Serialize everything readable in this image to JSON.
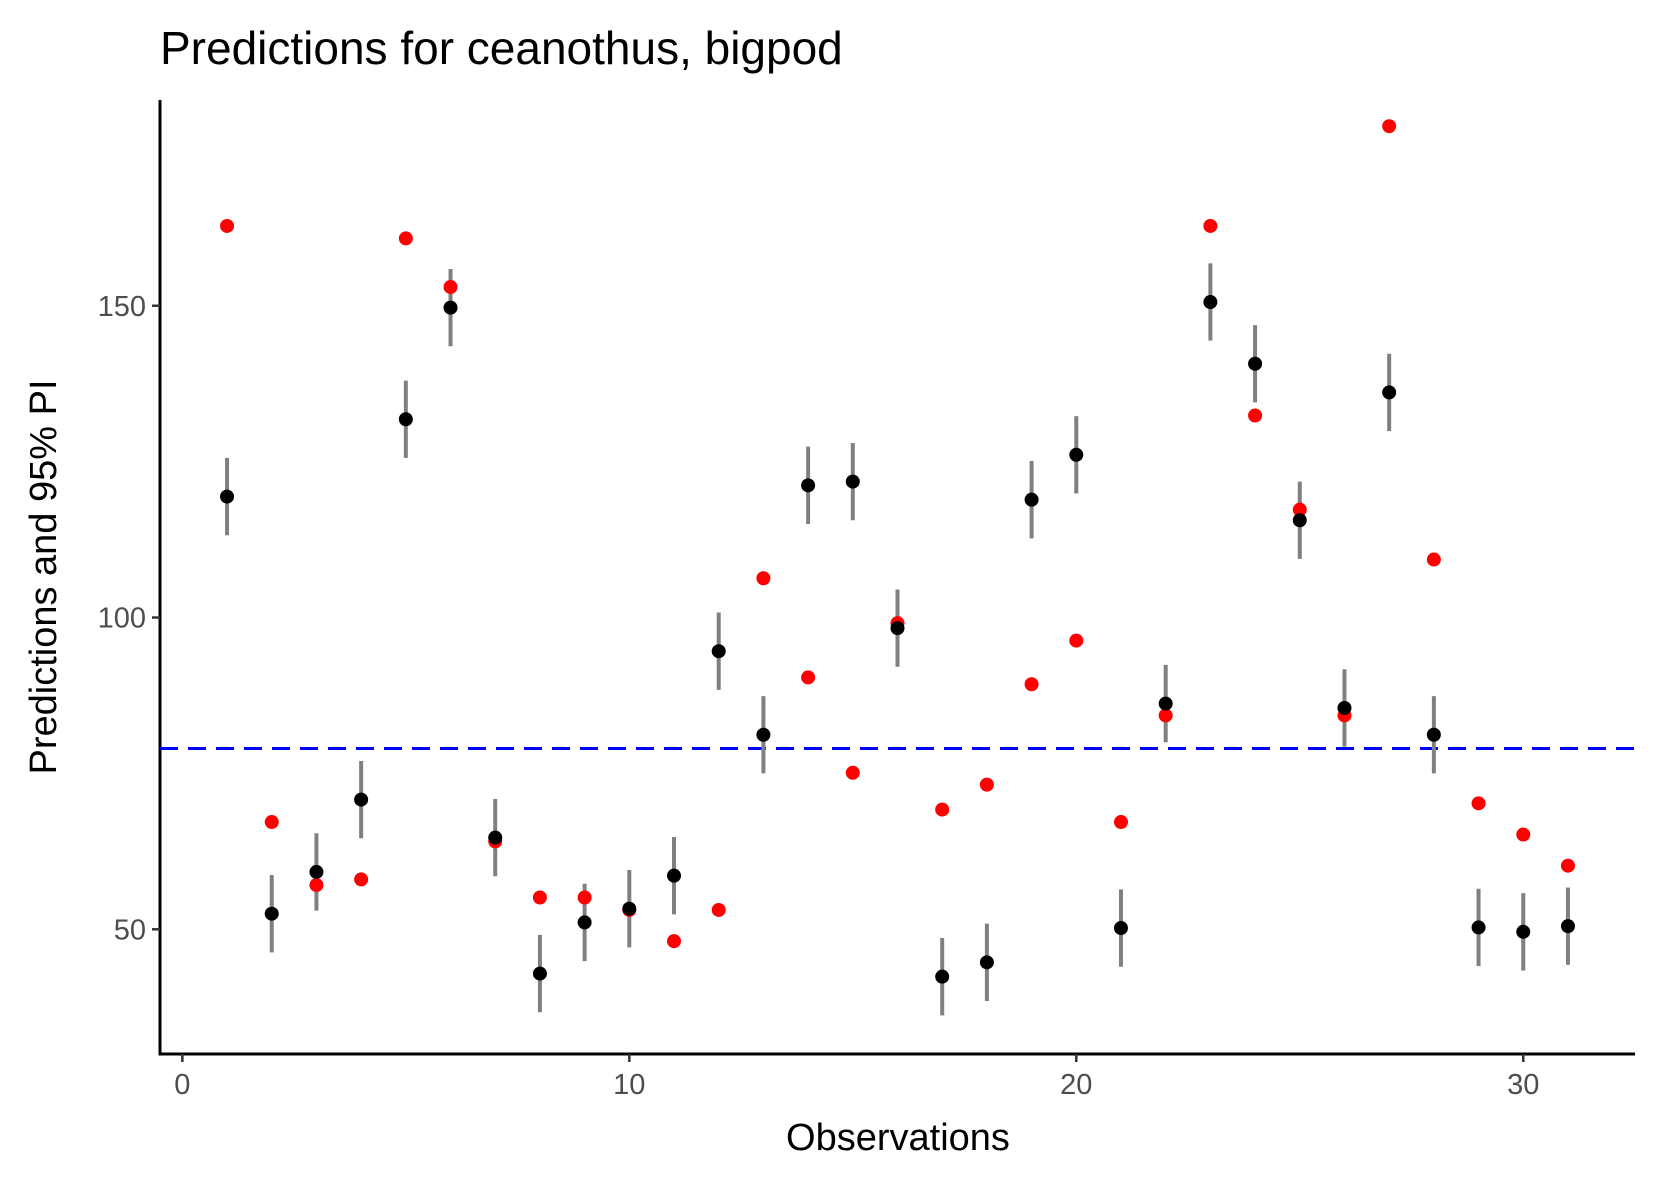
{
  "chart_data": {
    "type": "scatter",
    "title": "Predictions for ceanothus, bigpod",
    "xlabel": "Observations",
    "ylabel": "Predictions and 95% PI",
    "xlim": [
      -0.5,
      32.5
    ],
    "ylim": [
      30,
      183
    ],
    "xticks": [
      0,
      10,
      20,
      30
    ],
    "yticks": [
      50,
      100,
      150
    ],
    "grid": false,
    "reference_line": {
      "y": 79,
      "style": "dashed",
      "color": "#0000ff"
    },
    "colors": {
      "prediction": "#000000",
      "interval": "#808080",
      "observed": "#ff0000"
    },
    "series": [
      {
        "kind": "prediction_with_interval",
        "x": [
          1,
          2,
          3,
          4,
          5,
          6,
          7,
          8,
          9,
          10,
          11,
          12,
          13,
          14,
          15,
          16,
          17,
          18,
          19,
          20,
          21,
          22,
          23,
          24,
          25,
          26,
          27,
          28,
          29,
          30,
          31
        ],
        "y": [
          119.4,
          52.5,
          59.2,
          70.8,
          131.8,
          149.7,
          64.7,
          42.9,
          51.1,
          53.3,
          58.6,
          94.6,
          81.2,
          121.2,
          121.8,
          98.3,
          42.4,
          44.7,
          118.9,
          126.1,
          50.2,
          86.2,
          150.6,
          140.7,
          115.6,
          85.5,
          136.1,
          81.2,
          50.3,
          49.6,
          50.5
        ],
        "lower": [
          113.2,
          46.3,
          53.0,
          64.6,
          125.6,
          143.5,
          58.5,
          36.7,
          44.9,
          47.1,
          52.4,
          88.4,
          75.0,
          115.0,
          115.6,
          92.1,
          36.2,
          38.5,
          112.7,
          119.9,
          44.0,
          80.0,
          144.4,
          134.5,
          109.4,
          79.3,
          129.9,
          75.0,
          44.1,
          43.4,
          44.3
        ],
        "upper": [
          125.6,
          58.7,
          65.4,
          77.0,
          138.0,
          155.9,
          70.9,
          49.1,
          57.3,
          59.5,
          64.8,
          100.8,
          87.4,
          127.4,
          128.0,
          104.5,
          48.6,
          50.9,
          125.1,
          132.3,
          56.4,
          92.4,
          156.8,
          146.9,
          121.8,
          91.7,
          142.3,
          87.4,
          56.5,
          55.8,
          56.7
        ]
      },
      {
        "kind": "observed",
        "x": [
          1,
          2,
          3,
          4,
          5,
          6,
          7,
          8,
          9,
          10,
          11,
          12,
          13,
          14,
          15,
          16,
          17,
          18,
          19,
          20,
          21,
          22,
          23,
          24,
          25,
          26,
          27,
          28,
          29,
          30,
          31
        ],
        "y": [
          162.8,
          67.2,
          57.1,
          58.0,
          160.8,
          153.0,
          64.1,
          55.1,
          55.1,
          53.1,
          48.1,
          53.1,
          106.3,
          90.4,
          75.1,
          99.1,
          69.2,
          73.2,
          89.3,
          96.3,
          67.2,
          84.3,
          162.8,
          132.4,
          117.3,
          84.3,
          178.8,
          109.3,
          70.2,
          65.2,
          60.2
        ]
      }
    ]
  }
}
